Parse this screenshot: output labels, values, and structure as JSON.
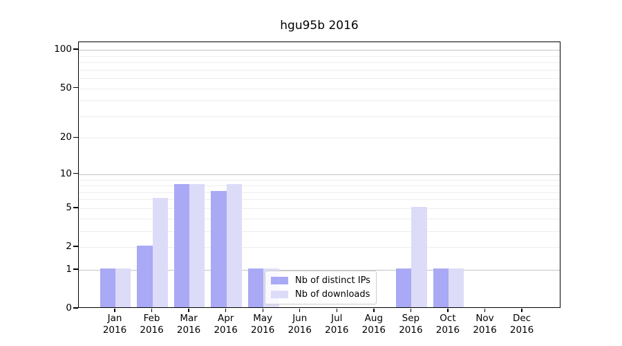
{
  "chart_data": {
    "type": "bar",
    "title": "hgu95b 2016",
    "x_categories": [
      "Jan",
      "Feb",
      "Mar",
      "Apr",
      "May",
      "Jun",
      "Jul",
      "Aug",
      "Sep",
      "Oct",
      "Nov",
      "Dec"
    ],
    "x_year": "2016",
    "series": [
      {
        "name": "Nb of distinct IPs",
        "color": "#a9a9f5",
        "values": [
          1,
          2,
          8,
          7,
          1,
          0,
          0,
          0,
          1,
          1,
          0,
          0
        ]
      },
      {
        "name": "Nb of downloads",
        "color": "#dcdcf8",
        "values": [
          1,
          6,
          8,
          8,
          1,
          0,
          0,
          0,
          5,
          1,
          0,
          0
        ]
      }
    ],
    "y_scale": "log10(1+value)",
    "ylim": [
      0,
      115
    ],
    "y_axis_ticks": [
      0,
      1,
      2,
      5,
      10,
      20,
      50,
      100
    ],
    "y_gridlines_major": [
      1,
      10,
      100
    ],
    "y_gridlines_minor": [
      2,
      3,
      4,
      5,
      6,
      7,
      8,
      9,
      20,
      30,
      40,
      50,
      60,
      70,
      80,
      90
    ],
    "grid_color_major": "#c3c3c3",
    "grid_color_minor": "#ededed",
    "legend_position": "lower-center",
    "grid": "on"
  }
}
